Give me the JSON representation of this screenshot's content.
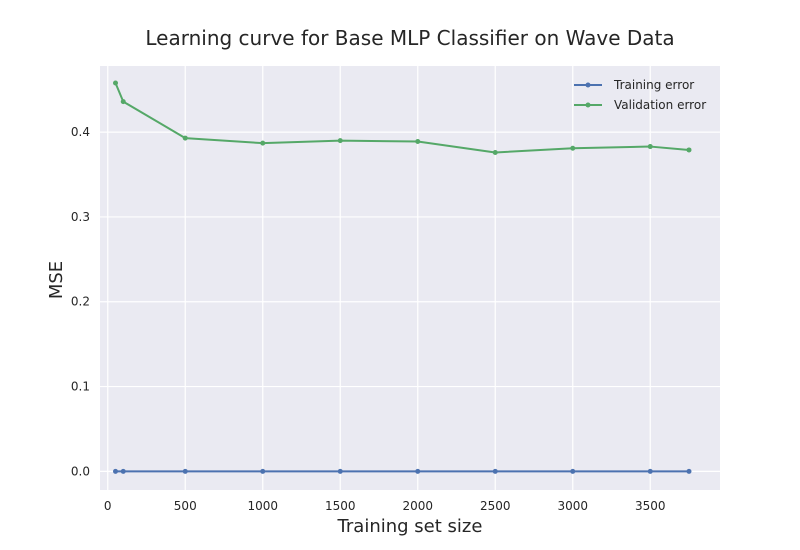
{
  "chart_data": {
    "type": "line",
    "title": "Learning curve for Base MLP Classifier on Wave Data",
    "xlabel": "Training set size",
    "ylabel": "MSE",
    "xlim": [
      -50,
      3950
    ],
    "ylim": [
      -0.022,
      0.478
    ],
    "xticks": [
      0,
      500,
      1000,
      1500,
      2000,
      2500,
      3000,
      3500
    ],
    "xtick_labels": [
      "0",
      "500",
      "1000",
      "1500",
      "2000",
      "2500",
      "3000",
      "3500"
    ],
    "yticks": [
      0.0,
      0.1,
      0.2,
      0.3,
      0.4
    ],
    "ytick_labels": [
      "0.0",
      "0.1",
      "0.2",
      "0.3",
      "0.4"
    ],
    "grid": true,
    "legend_position": "upper-right",
    "x": [
      50,
      100,
      500,
      1000,
      1500,
      2000,
      2500,
      3000,
      3500,
      3750
    ],
    "series": [
      {
        "name": "Training error",
        "color": "#4c72b0",
        "values": [
          0.0,
          0.0,
          0.0,
          0.0,
          0.0,
          0.0,
          0.0,
          0.0,
          0.0,
          0.0
        ]
      },
      {
        "name": "Validation error",
        "color": "#55a868",
        "values": [
          0.458,
          0.436,
          0.393,
          0.387,
          0.39,
          0.389,
          0.376,
          0.381,
          0.383,
          0.379
        ]
      }
    ],
    "plot_background": "#eaeaf2",
    "grid_color": "#ffffff"
  }
}
